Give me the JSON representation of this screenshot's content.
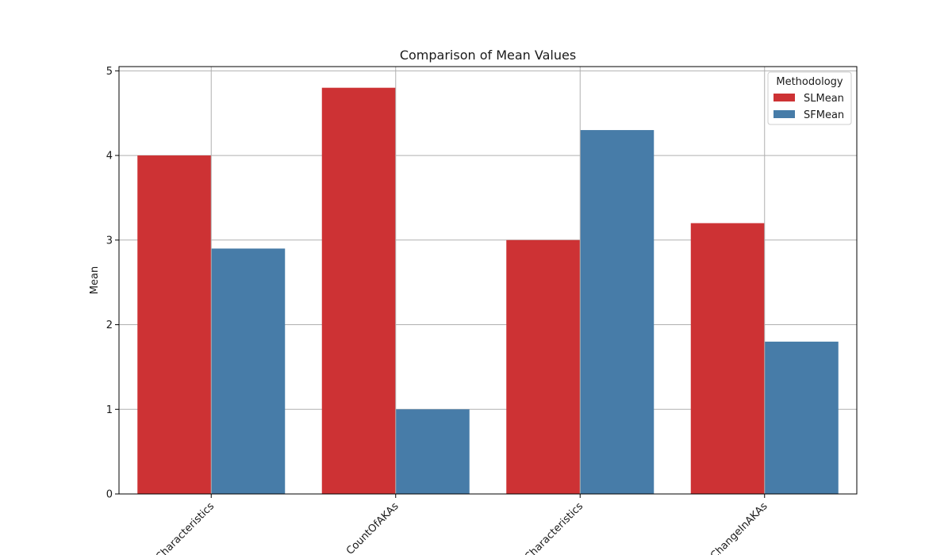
{
  "chart_data": {
    "type": "bar",
    "title": "Comparison of Mean Values",
    "xlabel": "",
    "ylabel": "Mean",
    "categories": [
      "Characteristics",
      "CountOfAKAs",
      "Characteristics",
      "ChangeInAKAs"
    ],
    "series": [
      {
        "name": "SLMean",
        "color": "#cd3234",
        "values": [
          4.0,
          4.8,
          3.0,
          3.2
        ]
      },
      {
        "name": "SFMean",
        "color": "#477ca8",
        "values": [
          2.9,
          1.0,
          4.3,
          1.8
        ]
      }
    ],
    "ylim": [
      0,
      5.05
    ],
    "yticks": [
      "0",
      "1",
      "2",
      "3",
      "4",
      "5"
    ],
    "grid": true,
    "legend": {
      "title": "Methodology",
      "position": "top-right"
    }
  }
}
